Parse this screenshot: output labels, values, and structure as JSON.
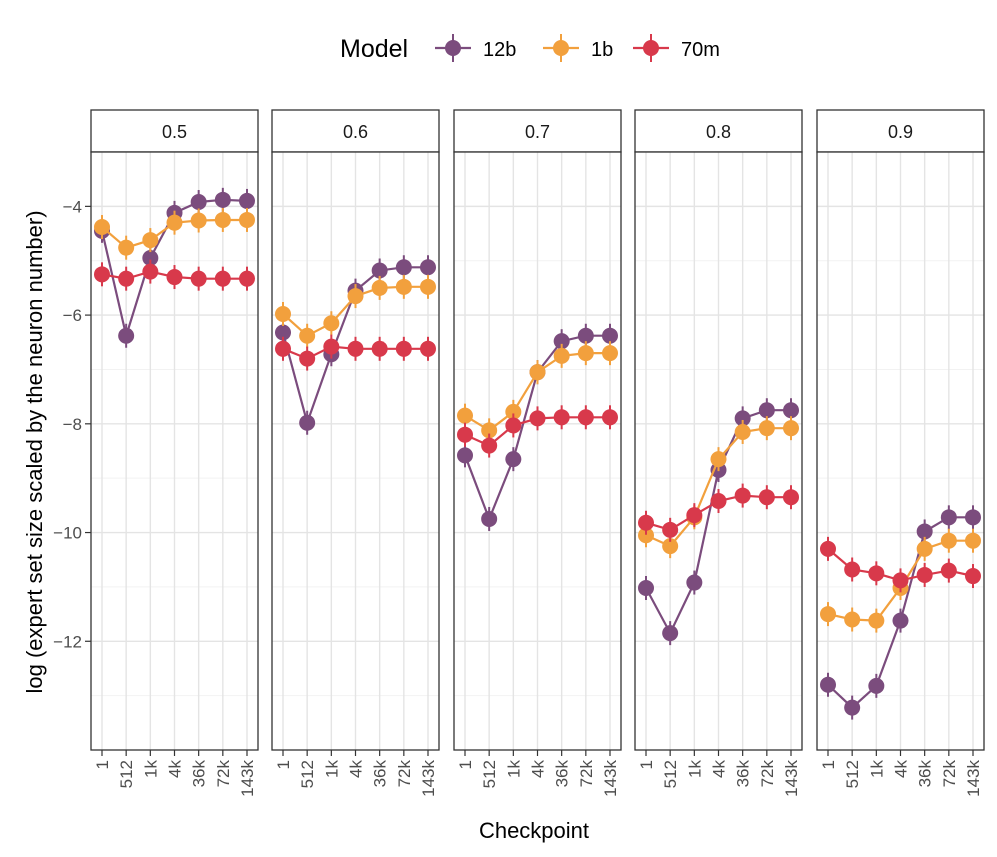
{
  "chart_data": {
    "type": "line",
    "facet_variable": "threshold",
    "facets": [
      "0.5",
      "0.6",
      "0.7",
      "0.8",
      "0.9"
    ],
    "categories": [
      "1",
      "512",
      "1k",
      "4k",
      "36k",
      "72k",
      "143k"
    ],
    "xlabel": "Checkpoint",
    "ylabel": "log (expert set size scaled by the neuron number)",
    "ylim": [
      -14,
      -3
    ],
    "yticks": [
      -4,
      -6,
      -8,
      -10,
      -12
    ],
    "ytick_labels": [
      "−4",
      "−6",
      "−8",
      "−10",
      "−12"
    ],
    "grid": true,
    "legend": {
      "title": "Model",
      "position": "top"
    },
    "series": [
      {
        "name": "12b",
        "color": "#7B4C7D",
        "values": [
          [
            -4.45,
            -6.38,
            -4.95,
            -4.12,
            -3.92,
            -3.88,
            -3.9
          ],
          [
            -6.32,
            -7.98,
            -6.72,
            -5.55,
            -5.18,
            -5.12,
            -5.12
          ],
          [
            -8.58,
            -9.75,
            -8.65,
            -7.05,
            -6.48,
            -6.38,
            -6.38
          ],
          [
            -11.02,
            -11.85,
            -10.92,
            -8.85,
            -7.9,
            -7.75,
            -7.75
          ],
          [
            -12.8,
            -13.22,
            -12.82,
            -11.62,
            -9.98,
            -9.72,
            -9.72
          ]
        ]
      },
      {
        "name": "1b",
        "color": "#F2A03D",
        "values": [
          [
            -4.38,
            -4.76,
            -4.62,
            -4.3,
            -4.26,
            -4.25,
            -4.25
          ],
          [
            -5.98,
            -6.38,
            -6.15,
            -5.65,
            -5.5,
            -5.48,
            -5.48
          ],
          [
            -7.85,
            -8.12,
            -7.78,
            -7.05,
            -6.75,
            -6.7,
            -6.7
          ],
          [
            -10.05,
            -10.25,
            -9.72,
            -8.65,
            -8.15,
            -8.08,
            -8.08
          ],
          [
            -11.5,
            -11.6,
            -11.62,
            -11.02,
            -10.3,
            -10.15,
            -10.15
          ]
        ]
      },
      {
        "name": "70m",
        "color": "#D8394B",
        "values": [
          [
            -5.25,
            -5.33,
            -5.2,
            -5.3,
            -5.33,
            -5.33,
            -5.33
          ],
          [
            -6.62,
            -6.8,
            -6.58,
            -6.62,
            -6.62,
            -6.62,
            -6.62
          ],
          [
            -8.2,
            -8.4,
            -8.03,
            -7.9,
            -7.88,
            -7.88,
            -7.88
          ],
          [
            -9.82,
            -9.95,
            -9.68,
            -9.42,
            -9.32,
            -9.35,
            -9.35
          ],
          [
            -10.3,
            -10.68,
            -10.75,
            -10.88,
            -10.78,
            -10.7,
            -10.8
          ]
        ]
      }
    ]
  }
}
